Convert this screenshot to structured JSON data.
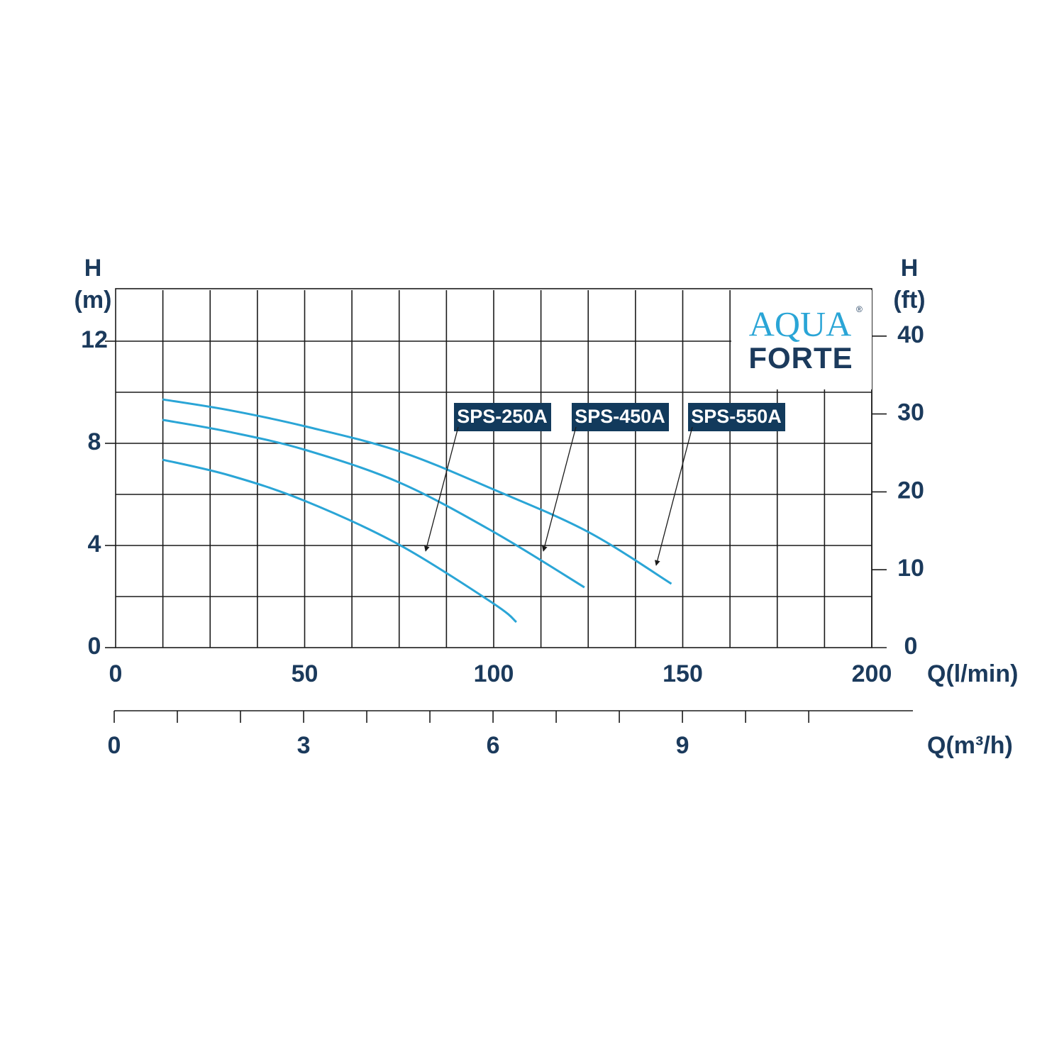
{
  "chart_data": {
    "type": "line",
    "ylabel": [
      "H",
      "(m)"
    ],
    "y2label": [
      "H",
      "(ft)"
    ],
    "xlabel": "Q(l/min)",
    "x2label": "Q(m³/h)",
    "xlim": [
      0,
      200
    ],
    "xticks": [
      0,
      50,
      100,
      150,
      200
    ],
    "xgrid": [
      12.5,
      25,
      37.5,
      50,
      62.5,
      75,
      87.5,
      100,
      112.5,
      125,
      137.5,
      150,
      162.5,
      175,
      187.5,
      200
    ],
    "ylim": [
      0,
      14
    ],
    "yticks": [
      0,
      4,
      8,
      12
    ],
    "ygrid": [
      2,
      4,
      6,
      8,
      10,
      12
    ],
    "y2lim": [
      0,
      45.9
    ],
    "y2ticks": [
      0,
      10,
      20,
      30,
      40
    ],
    "x2lim": [
      0,
      12.65
    ],
    "x2ticks": [
      0,
      3,
      6,
      9
    ],
    "x2minorticks": [
      1,
      2,
      4,
      5,
      7,
      8,
      10,
      11
    ],
    "grid": true,
    "series": [
      {
        "name": "SPS-250A",
        "color": "#2aa5d6",
        "x": [
          12.4,
          30,
          50,
          75,
          100,
          106
        ],
        "values": [
          7.36,
          6.75,
          5.75,
          4.03,
          1.72,
          1.0
        ]
      },
      {
        "name": "SPS-450A",
        "color": "#2aa5d6",
        "x": [
          12.4,
          30,
          50,
          75,
          100,
          124
        ],
        "values": [
          8.92,
          8.45,
          7.75,
          6.47,
          4.53,
          2.36
        ]
      },
      {
        "name": "SPS-550A",
        "color": "#2aa5d6",
        "x": [
          12.4,
          30,
          50,
          75,
          100,
          125,
          147
        ],
        "values": [
          9.72,
          9.3,
          8.67,
          7.69,
          6.19,
          4.53,
          2.5
        ]
      }
    ],
    "logo": {
      "top": "AQUA",
      "bottom": "FORTE",
      "mark": "®"
    }
  }
}
